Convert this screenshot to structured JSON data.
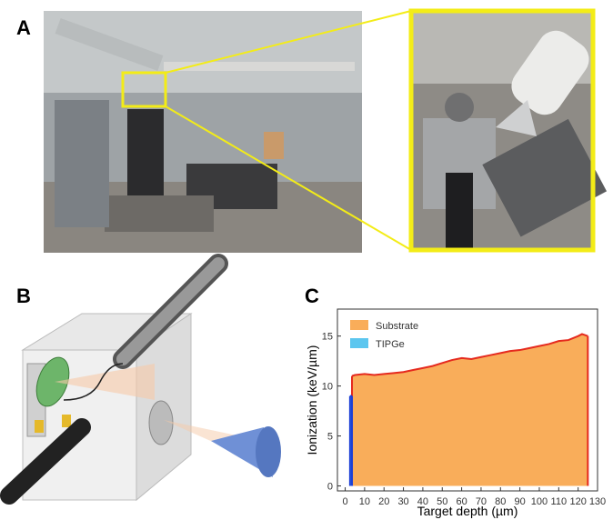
{
  "panels": [
    "A",
    "B",
    "C"
  ],
  "chart_data": {
    "type": "area",
    "xlabel": "Target depth (µm)",
    "ylabel": "Ionization (keV/µm)",
    "xlim": [
      -4,
      130
    ],
    "ylim": [
      -0.5,
      17.7
    ],
    "xticks": [
      0,
      10,
      20,
      30,
      40,
      50,
      60,
      70,
      80,
      90,
      100,
      110,
      120,
      130
    ],
    "yticks": [
      0,
      5,
      10,
      15
    ],
    "legend": "upper left",
    "series": [
      {
        "name": "Substrate",
        "color": "#f9ad5a",
        "line_color": "#e52a1e",
        "x": [
          3.5,
          5,
          10,
          15,
          20,
          25,
          30,
          35,
          40,
          45,
          50,
          55,
          60,
          65,
          70,
          75,
          80,
          85,
          90,
          95,
          100,
          105,
          110,
          115,
          120,
          122,
          125
        ],
        "values": [
          11.0,
          11.1,
          11.2,
          11.1,
          11.2,
          11.3,
          11.4,
          11.6,
          11.8,
          12.0,
          12.3,
          12.6,
          12.8,
          12.7,
          12.9,
          13.1,
          13.3,
          13.5,
          13.6,
          13.8,
          14.0,
          14.2,
          14.5,
          14.6,
          15.0,
          15.2,
          15.0
        ]
      },
      {
        "name": "TIPGe",
        "color": "#5cc6ef",
        "line_color": "#1d3fd6",
        "x": [
          2.5,
          3.5
        ],
        "values": [
          9,
          9
        ]
      }
    ]
  }
}
